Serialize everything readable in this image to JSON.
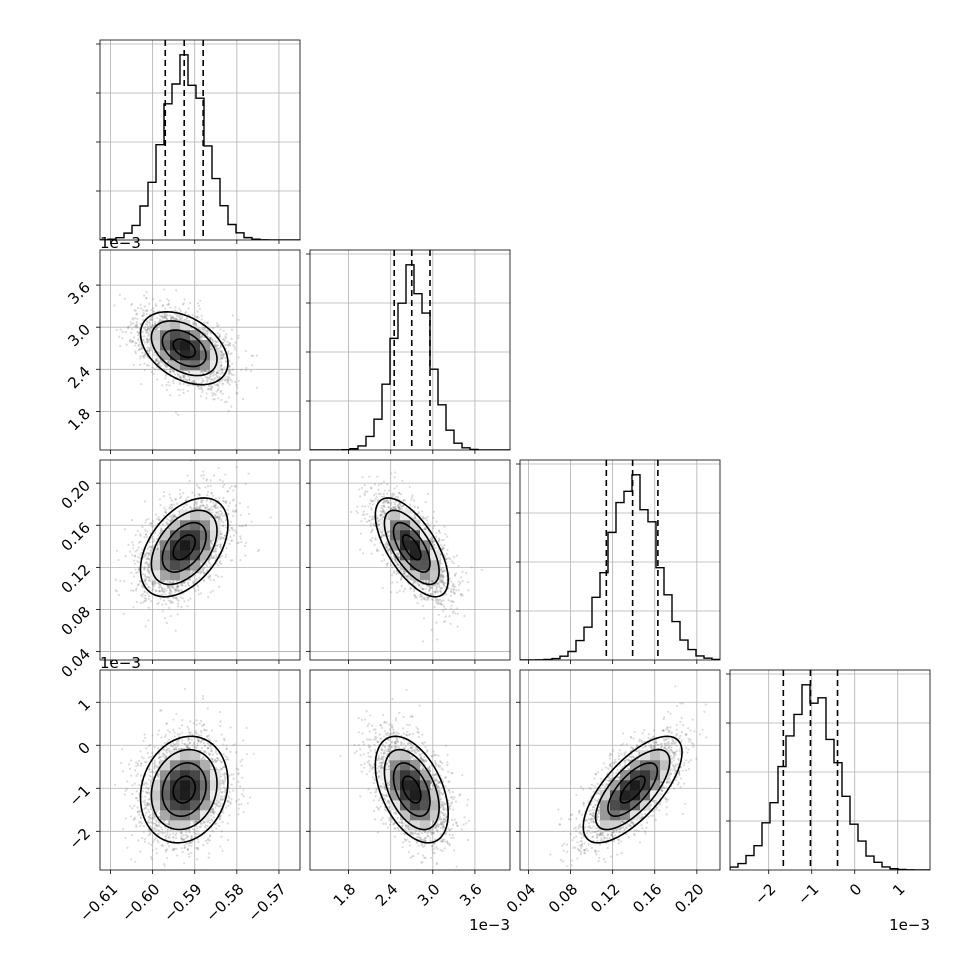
{
  "chart_data": {
    "type": "corner",
    "parameters": [
      {
        "id": "p0",
        "mean": -0.5925,
        "sd": 0.0052,
        "range": [
          -0.6125,
          -0.565
        ],
        "ticks": [
          -0.61,
          -0.6,
          -0.59,
          -0.58,
          -0.57
        ],
        "tick_labels": [
          "−0.61",
          "−0.60",
          "−0.59",
          "−0.58",
          "−0.57"
        ],
        "offset_label": "",
        "quantiles": [
          -0.597,
          -0.5925,
          -0.588
        ]
      },
      {
        "id": "p1",
        "mean": 0.0027,
        "sd": 0.00026,
        "range": [
          0.00125,
          0.0041
        ],
        "ticks": [
          0.0018,
          0.0024,
          0.003,
          0.0036
        ],
        "tick_labels": [
          "1.8",
          "2.4",
          "3.0",
          "3.6"
        ],
        "offset_label": "1e−3",
        "quantiles": [
          0.00245,
          0.0027,
          0.00296
        ]
      },
      {
        "id": "p2",
        "mean": 0.139,
        "sd": 0.0235,
        "range": [
          0.032,
          0.222
        ],
        "ticks": [
          0.04,
          0.08,
          0.12,
          0.16,
          0.2
        ],
        "tick_labels": [
          "0.04",
          "0.08",
          "0.12",
          "0.16",
          "0.20"
        ],
        "offset_label": "",
        "quantiles": [
          0.114,
          0.139,
          0.163
        ]
      },
      {
        "id": "p3",
        "mean": -0.00103,
        "sd": 0.00062,
        "range": [
          -0.0029,
          0.00175
        ],
        "ticks": [
          -0.002,
          -0.001,
          0.0,
          0.001
        ],
        "tick_labels": [
          "−2",
          "−1",
          "0",
          "1"
        ],
        "offset_label": "1e−3",
        "quantiles": [
          -0.00166,
          -0.00103,
          -0.0004
        ]
      }
    ],
    "correlations": [
      {
        "pair": [
          "p0",
          "p1"
        ],
        "r": -0.4
      },
      {
        "pair": [
          "p0",
          "p2"
        ],
        "r": 0.45
      },
      {
        "pair": [
          "p1",
          "p2"
        ],
        "r": -0.65
      },
      {
        "pair": [
          "p0",
          "p3"
        ],
        "r": 0.15
      },
      {
        "pair": [
          "p1",
          "p3"
        ],
        "r": -0.45
      },
      {
        "pair": [
          "p2",
          "p3"
        ],
        "r": 0.7
      }
    ],
    "density_levels": [
      0.118,
      0.393,
      0.675,
      0.864
    ],
    "samples_per_panel": 2500,
    "grid": true,
    "line_color": "#000000",
    "sample_color": "#7f7f7f"
  }
}
